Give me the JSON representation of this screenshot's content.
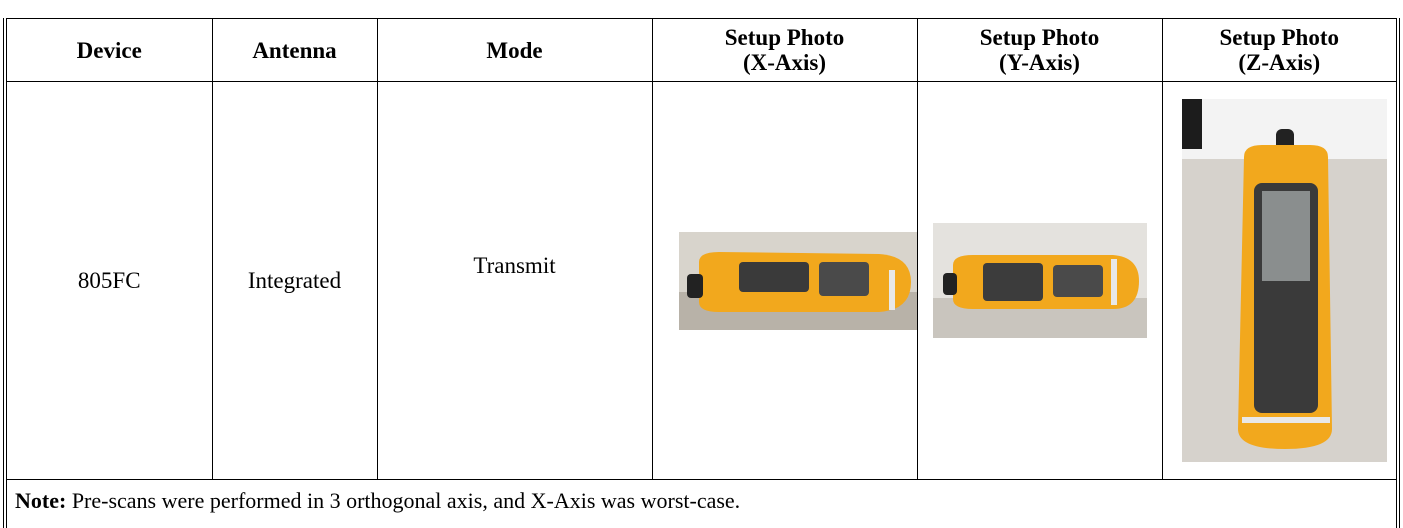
{
  "table": {
    "columns": [
      "Device",
      "Antenna",
      "Mode",
      "Setup Photo\n(X-Axis)",
      "Setup Photo\n(Y-Axis)",
      "Setup Photo\n(Z-Axis)"
    ],
    "rows": [
      [
        "805FC",
        "Integrated",
        "Transmit"
      ]
    ],
    "note": {
      "label": "Note:",
      "text": " Pre-scans were performed in 3 orthogonal axis, and X-Axis was worst-case."
    }
  }
}
